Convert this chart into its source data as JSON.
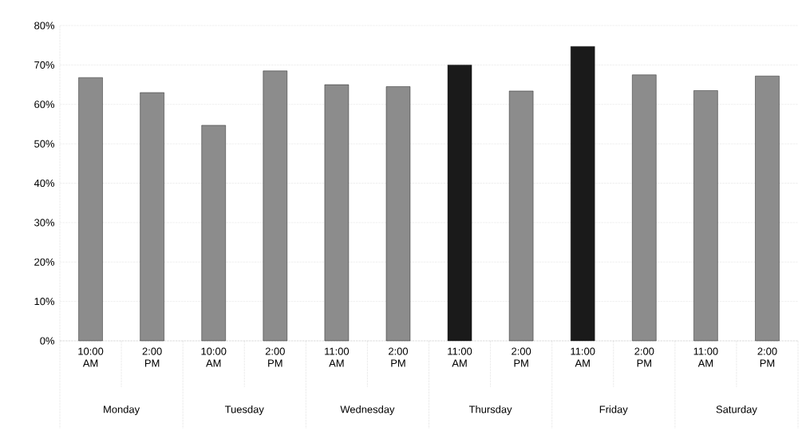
{
  "chart_data": {
    "type": "bar",
    "categories": [
      "10:00 AM",
      "2:00 PM",
      "10:00 AM",
      "2:00 PM",
      "11:00 AM",
      "2:00 PM",
      "11:00 AM",
      "2:00 PM",
      "11:00 AM",
      "2:00 PM",
      "11:00 AM",
      "2:00 PM"
    ],
    "values": [
      66.8,
      63.0,
      54.7,
      68.5,
      65.0,
      64.5,
      70.0,
      63.4,
      74.7,
      67.5,
      63.5,
      67.2
    ],
    "colors": [
      "#8c8c8c",
      "#8c8c8c",
      "#8c8c8c",
      "#8c8c8c",
      "#8c8c8c",
      "#8c8c8c",
      "#1a1a1a",
      "#8c8c8c",
      "#1a1a1a",
      "#8c8c8c",
      "#8c8c8c",
      "#8c8c8c"
    ],
    "ylim": [
      0,
      80
    ],
    "yticks": [
      {
        "value": 0,
        "label": "0%"
      },
      {
        "value": 10,
        "label": "10%"
      },
      {
        "value": 20,
        "label": "20%"
      },
      {
        "value": 30,
        "label": "30%"
      },
      {
        "value": 40,
        "label": "40%"
      },
      {
        "value": 50,
        "label": "50%"
      },
      {
        "value": 60,
        "label": "60%"
      },
      {
        "value": 70,
        "label": "70%"
      },
      {
        "value": 80,
        "label": "80%"
      }
    ],
    "annotations": [
      "Monday",
      "Tuesday",
      "Wednesday",
      "Thursday",
      "Friday",
      "Saturday"
    ],
    "grid": "y"
  }
}
